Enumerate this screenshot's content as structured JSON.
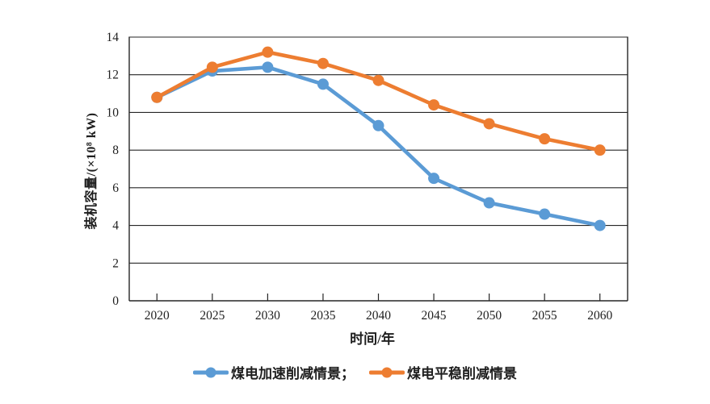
{
  "chart_data": {
    "type": "line",
    "title": "",
    "xlabel": "时间/年",
    "ylabel": "装机容量/(×10⁸ kW)",
    "x_categories": [
      "2020",
      "2025",
      "2030",
      "2035",
      "2040",
      "2045",
      "2050",
      "2055",
      "2060"
    ],
    "y_ticks": [
      0,
      2,
      4,
      6,
      8,
      10,
      12,
      14
    ],
    "ylim": [
      0,
      14
    ],
    "grid": "horizontal gridlines on, boxed plot area",
    "legend_position": "bottom-center",
    "axis_color": "#262626",
    "series": [
      {
        "key": "accelerated",
        "name": "煤电加速削减情景",
        "legend_label": "煤电加速削减情景；",
        "color": "#5B9BD5",
        "marker": "circle",
        "values": [
          10.8,
          12.2,
          12.4,
          11.5,
          9.3,
          6.5,
          5.2,
          4.6,
          4.0
        ]
      },
      {
        "key": "steady",
        "name": "煤电平稳削减情景",
        "legend_label": "煤电平稳削减情景",
        "color": "#ED7D31",
        "marker": "circle",
        "values": [
          10.8,
          12.4,
          13.2,
          12.6,
          11.7,
          10.4,
          9.4,
          8.6,
          8.0
        ]
      }
    ]
  }
}
